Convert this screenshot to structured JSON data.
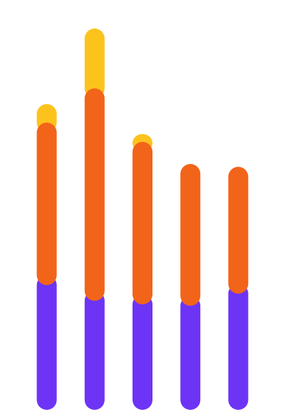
{
  "chart_data": {
    "type": "stacked-bar",
    "categories": [
      null,
      null,
      null,
      null,
      null
    ],
    "series": [
      {
        "color": "#6e34f5",
        "values": [
          175,
          153,
          148,
          146,
          163
        ]
      },
      {
        "color": "#f26419",
        "values": [
          228,
          298,
          228,
          199,
          178
        ]
      },
      {
        "color": "#fdc31d",
        "values": [
          26,
          84,
          11,
          0,
          0
        ]
      }
    ],
    "ylim": [
      0,
      535
    ]
  }
}
